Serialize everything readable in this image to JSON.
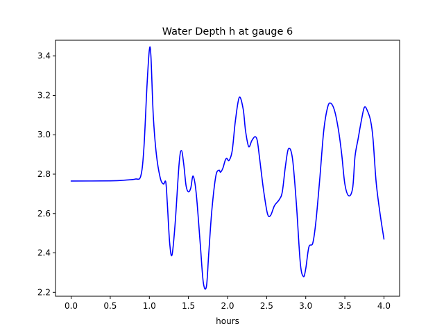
{
  "chart_data": {
    "type": "line",
    "title": "Water Depth h at gauge 6",
    "xlabel": "hours",
    "ylabel": "",
    "xlim": [
      -0.2,
      4.2
    ],
    "ylim": [
      2.18,
      3.48
    ],
    "xticks": [
      0.0,
      0.5,
      1.0,
      1.5,
      2.0,
      2.5,
      3.0,
      3.5,
      4.0
    ],
    "xtick_labels": [
      "0.0",
      "0.5",
      "1.0",
      "1.5",
      "2.0",
      "2.5",
      "3.0",
      "3.5",
      "4.0"
    ],
    "yticks": [
      2.2,
      2.4,
      2.6,
      2.8,
      3.0,
      3.2,
      3.4
    ],
    "ytick_labels": [
      "2.2",
      "2.4",
      "2.6",
      "2.8",
      "3.0",
      "3.2",
      "3.4"
    ],
    "grid": false,
    "series": [
      {
        "color": "#0000ff",
        "x": [
          0.0,
          0.5,
          0.7,
          0.82,
          0.89,
          0.93,
          0.97,
          1.0,
          1.02,
          1.05,
          1.09,
          1.14,
          1.18,
          1.21,
          1.23,
          1.26,
          1.29,
          1.33,
          1.38,
          1.41,
          1.44,
          1.47,
          1.5,
          1.53,
          1.56,
          1.6,
          1.65,
          1.69,
          1.73,
          1.76,
          1.8,
          1.85,
          1.89,
          1.91,
          1.94,
          1.97,
          1.99,
          2.02,
          2.06,
          2.1,
          2.15,
          2.2,
          2.23,
          2.27,
          2.31,
          2.35,
          2.38,
          2.41,
          2.46,
          2.51,
          2.55,
          2.6,
          2.66,
          2.7,
          2.74,
          2.78,
          2.83,
          2.88,
          2.93,
          2.97,
          3.0,
          3.04,
          3.09,
          3.13,
          3.18,
          3.23,
          3.28,
          3.32,
          3.37,
          3.42,
          3.46,
          3.5,
          3.55,
          3.6,
          3.63,
          3.67,
          3.71,
          3.75,
          3.79,
          3.83,
          3.86,
          3.9,
          3.95,
          4.0
        ],
        "y": [
          2.765,
          2.766,
          2.77,
          2.775,
          2.79,
          2.93,
          3.25,
          3.43,
          3.4,
          3.1,
          2.9,
          2.78,
          2.75,
          2.76,
          2.65,
          2.45,
          2.39,
          2.55,
          2.85,
          2.92,
          2.85,
          2.74,
          2.71,
          2.73,
          2.79,
          2.7,
          2.45,
          2.25,
          2.23,
          2.4,
          2.62,
          2.79,
          2.82,
          2.81,
          2.83,
          2.87,
          2.88,
          2.87,
          2.92,
          3.07,
          3.19,
          3.13,
          3.02,
          2.94,
          2.97,
          2.99,
          2.97,
          2.88,
          2.72,
          2.6,
          2.59,
          2.64,
          2.67,
          2.71,
          2.84,
          2.93,
          2.88,
          2.65,
          2.35,
          2.28,
          2.32,
          2.43,
          2.45,
          2.56,
          2.78,
          3.02,
          3.14,
          3.16,
          3.12,
          3.02,
          2.9,
          2.75,
          2.69,
          2.73,
          2.89,
          2.98,
          3.07,
          3.14,
          3.12,
          3.07,
          2.98,
          2.76,
          2.6,
          2.47
        ]
      }
    ]
  }
}
